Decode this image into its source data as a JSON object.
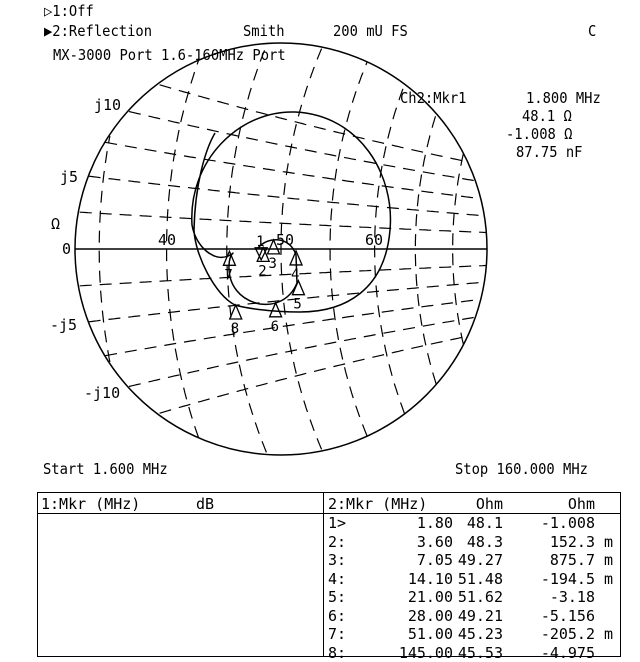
{
  "header": {
    "ch1": "▷1:Off",
    "ch2": "▶2:Reflection",
    "format": "Smith",
    "scale": "200 mU FS",
    "flag": "C",
    "title": "MX-3000 Port 1.6-160MHz Port"
  },
  "readout": {
    "label": "Ch2:Mkr1",
    "freq": "1.800 MHz",
    "resistance": "48.1 Ω",
    "reactance": "-1.008 Ω",
    "equiv": "87.75 nF"
  },
  "footer": {
    "start": "Start 1.600 MHz",
    "stop": "Stop 160.000 MHz"
  },
  "chart_data": {
    "type": "line",
    "chart_kind": "smith",
    "full_scale_mU": 200,
    "real_axis_labels": [
      "0",
      "40",
      "50",
      "60"
    ],
    "unit_label": "Ω",
    "reactance_labels": [
      "j10",
      "j5",
      "-j5",
      "-j10"
    ],
    "grid_resistance_ohm": [
      35,
      40,
      45,
      50,
      55,
      60,
      65,
      70
    ],
    "grid_reactance_ohm": [
      -12.5,
      -10,
      -7.5,
      -5,
      -2.5,
      2.5,
      5,
      7.5,
      10,
      12.5
    ],
    "markers": [
      {
        "id": "1",
        "freq_mhz": 1.8,
        "r": 48.1,
        "x": -1.008
      },
      {
        "id": "2",
        "freq_mhz": 3.6,
        "r": 48.3,
        "x": 0.1523
      },
      {
        "id": "3",
        "freq_mhz": 7.05,
        "r": 49.27,
        "x": 0.8757
      },
      {
        "id": "4",
        "freq_mhz": 14.1,
        "r": 51.48,
        "x": -0.1945
      },
      {
        "id": "5",
        "freq_mhz": 21.0,
        "r": 51.62,
        "x": -3.18
      },
      {
        "id": "6",
        "freq_mhz": 28.0,
        "r": 49.21,
        "x": -5.156
      },
      {
        "id": "7",
        "freq_mhz": 51.0,
        "r": 45.23,
        "x": -0.2052
      },
      {
        "id": "8",
        "freq_mhz": 145.0,
        "r": 45.53,
        "x": -4.975
      }
    ]
  },
  "table": {
    "left_header": [
      "1:Mkr (MHz)",
      "dB"
    ],
    "right_header": [
      "2:Mkr (MHz)",
      "Ohm",
      "Ohm"
    ],
    "rows": [
      [
        "1>",
        "1.80",
        "48.1",
        "-1.008",
        ""
      ],
      [
        "2:",
        "3.60",
        "48.3",
        "152.3",
        "m"
      ],
      [
        "3:",
        "7.05",
        "49.27",
        "875.7",
        "m"
      ],
      [
        "4:",
        "14.10",
        "51.48",
        "-194.5",
        "m"
      ],
      [
        "5:",
        "21.00",
        "51.62",
        "-3.18",
        ""
      ],
      [
        "6:",
        "28.00",
        "49.21",
        "-5.156",
        ""
      ],
      [
        "7:",
        "51.00",
        "45.23",
        "-205.2",
        "m"
      ],
      [
        "8:",
        "145.00",
        "45.53",
        "-4.975",
        ""
      ]
    ]
  }
}
